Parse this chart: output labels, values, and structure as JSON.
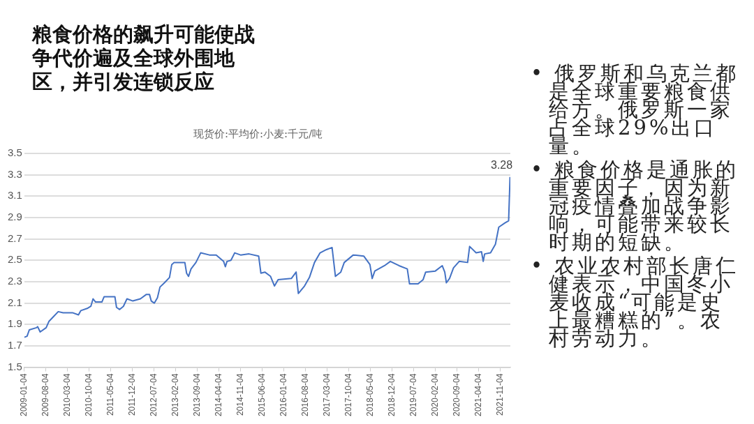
{
  "chart_data": {
    "type": "line",
    "title": "粮食价格的飙升可能使战争代价遍及全球外围地区，并引发连锁反应",
    "subtitle": "现货价:平均价:小麦:千元/吨",
    "annotations": [
      "• 俄罗斯和乌克兰都是全球重要粮食供给方。俄罗斯一家占全球29%出口量。",
      "• 粮食价格是通胀的重要因子，因为新冠疫情叠加战争影响，可能带来较长时期的短缺。",
      "• 农业农村部长唐仁健表示，中国冬小麦收成“可能是史上最糟糕的”。农村劳动力。"
    ],
    "x": [
      "2009-01-04",
      "2009-01-31",
      "2009-02-22",
      "2009-05-04",
      "2009-05-15",
      "2009-06-09",
      "2009-08-07",
      "2009-09-04",
      "2009-10-15",
      "2009-12-04",
      "2010-01-21",
      "2010-04-23",
      "2010-06-21",
      "2010-07-15",
      "2010-09-15",
      "2010-10-21",
      "2010-11-12",
      "2010-12-07",
      "2011-02-07",
      "2011-03-01",
      "2011-04-04",
      "2011-06-15",
      "2011-07-01",
      "2011-08-01",
      "2011-09-07",
      "2011-10-12",
      "2011-12-09",
      "2012-02-21",
      "2012-04-18",
      "2012-05-21",
      "2012-06-07",
      "2012-07-07",
      "2012-08-07",
      "2012-09-01",
      "2012-10-15",
      "2012-12-04",
      "2012-12-26",
      "2013-01-18",
      "2013-05-04",
      "2013-05-21",
      "2013-06-09",
      "2013-07-04",
      "2013-08-21",
      "2013-10-07",
      "2014-01-01",
      "2014-03-09",
      "2014-04-26",
      "2014-05-21",
      "2014-06-07",
      "2014-06-23",
      "2014-08-01",
      "2014-09-07",
      "2014-11-04",
      "2015-01-26",
      "2015-05-01",
      "2015-05-23",
      "2015-07-01",
      "2015-08-26",
      "2015-10-04",
      "2015-11-09",
      "2016-03-18",
      "2016-05-04",
      "2016-05-26",
      "2016-07-26",
      "2016-09-12",
      "2016-11-01",
      "2016-12-26",
      "2017-02-26",
      "2017-04-23",
      "2017-05-26",
      "2017-07-18",
      "2017-08-21",
      "2017-11-18",
      "2018-03-01",
      "2018-05-01",
      "2018-05-23",
      "2018-06-18",
      "2018-09-21",
      "2018-11-18",
      "2019-02-12",
      "2019-05-04",
      "2019-05-26",
      "2019-08-18",
      "2019-10-07",
      "2019-11-01",
      "2020-02-04",
      "2020-04-12",
      "2020-05-07",
      "2020-05-23",
      "2020-06-23",
      "2020-08-01",
      "2020-09-26",
      "2020-12-18",
      "2021-01-07",
      "2021-03-12",
      "2021-05-04",
      "2021-05-21",
      "2021-06-04",
      "2021-08-01",
      "2021-09-18",
      "2021-10-21",
      "2021-12-21",
      "2022-01-26",
      "2022-02-09"
    ],
    "series": [
      {
        "color": "#4472c4",
        "values": [
          1.78,
          1.79,
          1.85,
          1.87,
          1.88,
          1.83,
          1.87,
          1.93,
          1.97,
          2.02,
          2.01,
          2.01,
          1.99,
          2.03,
          2.05,
          2.07,
          2.14,
          2.11,
          2.11,
          2.16,
          2.16,
          2.16,
          2.06,
          2.04,
          2.07,
          2.14,
          2.12,
          2.14,
          2.18,
          2.18,
          2.12,
          2.1,
          2.15,
          2.25,
          2.29,
          2.34,
          2.46,
          2.48,
          2.48,
          2.38,
          2.35,
          2.42,
          2.48,
          2.57,
          2.55,
          2.55,
          2.51,
          2.49,
          2.44,
          2.49,
          2.5,
          2.57,
          2.55,
          2.56,
          2.54,
          2.38,
          2.39,
          2.35,
          2.26,
          2.32,
          2.33,
          2.39,
          2.19,
          2.26,
          2.34,
          2.48,
          2.57,
          2.6,
          2.62,
          2.35,
          2.39,
          2.48,
          2.55,
          2.54,
          2.46,
          2.33,
          2.4,
          2.45,
          2.49,
          2.45,
          2.42,
          2.28,
          2.28,
          2.32,
          2.39,
          2.4,
          2.45,
          2.39,
          2.29,
          2.33,
          2.43,
          2.49,
          2.48,
          2.63,
          2.57,
          2.58,
          2.49,
          2.56,
          2.57,
          2.65,
          2.81,
          2.85,
          2.87,
          3.28
        ],
        "value_labels": [
          null,
          null,
          null,
          null,
          null,
          null,
          null,
          null,
          null,
          null,
          null,
          null,
          null,
          null,
          null,
          null,
          null,
          null,
          null,
          null,
          null,
          null,
          null,
          null,
          null,
          null,
          null,
          null,
          null,
          null,
          null,
          null,
          null,
          null,
          null,
          null,
          null,
          null,
          null,
          null,
          null,
          null,
          null,
          null,
          null,
          null,
          null,
          null,
          null,
          null,
          null,
          null,
          null,
          null,
          null,
          null,
          null,
          null,
          null,
          null,
          null,
          null,
          null,
          null,
          null,
          null,
          null,
          null,
          null,
          null,
          null,
          null,
          null,
          null,
          null,
          null,
          null,
          null,
          null,
          null,
          null,
          null,
          null,
          null,
          null,
          null,
          null,
          null,
          null,
          null,
          null,
          null,
          null,
          null,
          null,
          null,
          null,
          null,
          null,
          null,
          null,
          null,
          null,
          "3.28"
        ]
      }
    ],
    "xlim": [
      "2009-01-04",
      "2022-02-12"
    ],
    "xticks": [
      "2009-01-04",
      "2009-08-04",
      "2010-03-04",
      "2010-10-04",
      "2011-05-04",
      "2011-12-04",
      "2012-07-04",
      "2013-02-04",
      "2013-09-04",
      "2014-04-04",
      "2014-11-04",
      "2015-06-04",
      "2016-01-04",
      "2016-08-04",
      "2017-03-04",
      "2017-10-04",
      "2018-05-04",
      "2018-12-04",
      "2019-07-04",
      "2020-02-04",
      "2020-09-04",
      "2021-04-04",
      "2021-11-04"
    ],
    "ylim": [
      1.5,
      3.5
    ],
    "yticks": [
      1.5,
      1.7,
      1.9,
      2.1,
      2.3,
      2.5,
      2.7,
      2.9,
      3.1,
      3.3,
      3.5
    ],
    "grid": "y",
    "legend": false
  }
}
